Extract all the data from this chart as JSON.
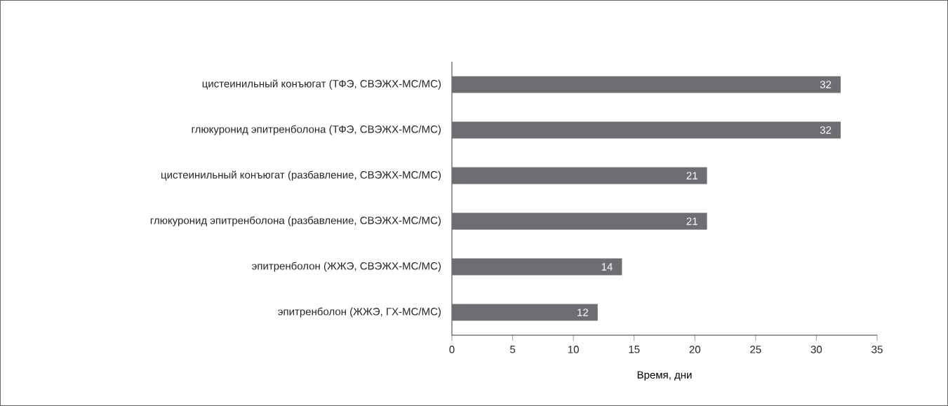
{
  "chart_data": {
    "type": "bar",
    "orientation": "horizontal",
    "categories": [
      "цистеинильный конъюгат (ТФЭ, СВЭЖХ-МС/МС)",
      "глюкуронид эпитренболона (ТФЭ, СВЭЖХ-МС/МС)",
      "цистеинильный конъюгат (разбавление, СВЭЖХ-МС/МС)",
      "глюкуронид эпитренболона (разбавление, СВЭЖХ-МС/МС)",
      "эпитренболон (ЖЖЭ, СВЭЖХ-МС/МС)",
      "эпитренболон (ЖЖЭ, ГХ-МС/МС)"
    ],
    "values": [
      32,
      32,
      21,
      21,
      14,
      12
    ],
    "color": "#6d6e71",
    "xlim": [
      0,
      35
    ],
    "xticks": [
      0,
      5,
      10,
      15,
      20,
      25,
      30,
      35
    ],
    "xlabel": "Время, дни",
    "data_labels": true
  }
}
